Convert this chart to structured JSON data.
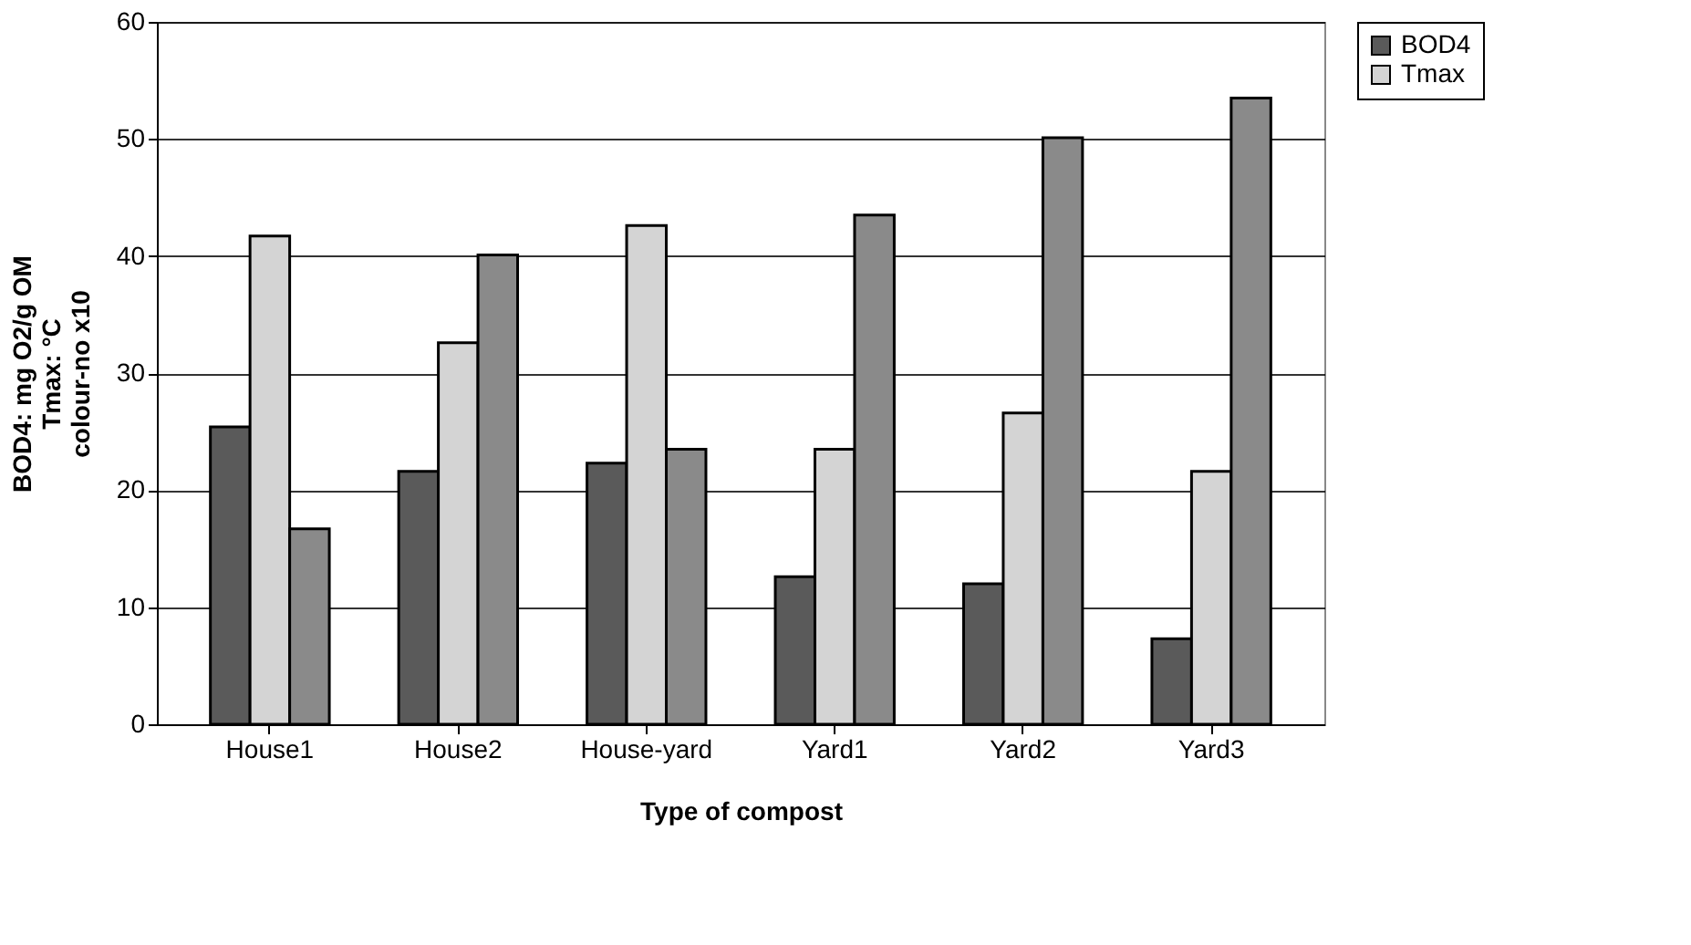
{
  "chart_data": {
    "type": "bar",
    "categories": [
      "House1",
      "House2",
      "House-yard",
      "Yard1",
      "Yard2",
      "Yard3"
    ],
    "series": [
      {
        "name": "BOD4",
        "color": "#5a5a5a",
        "values": [
          25.4,
          21.6,
          22.3,
          12.6,
          12.0,
          7.3
        ]
      },
      {
        "name": "Tmax",
        "color": "#d4d4d4",
        "values": [
          41.7,
          32.6,
          42.6,
          23.5,
          26.6,
          21.6
        ]
      },
      {
        "color": "#8a8a8a",
        "values": [
          16.7,
          40.1,
          23.5,
          43.5,
          50.1,
          53.5
        ]
      }
    ],
    "xlabel": "Type of compost",
    "ylabel": "BOD4: mg O2/g OM\nTmax: °C\ncolour-no x10",
    "ylim": [
      0,
      60
    ],
    "yticks": [
      0,
      10,
      20,
      30,
      40,
      50,
      60
    ],
    "grid": "y",
    "legend": "right"
  }
}
